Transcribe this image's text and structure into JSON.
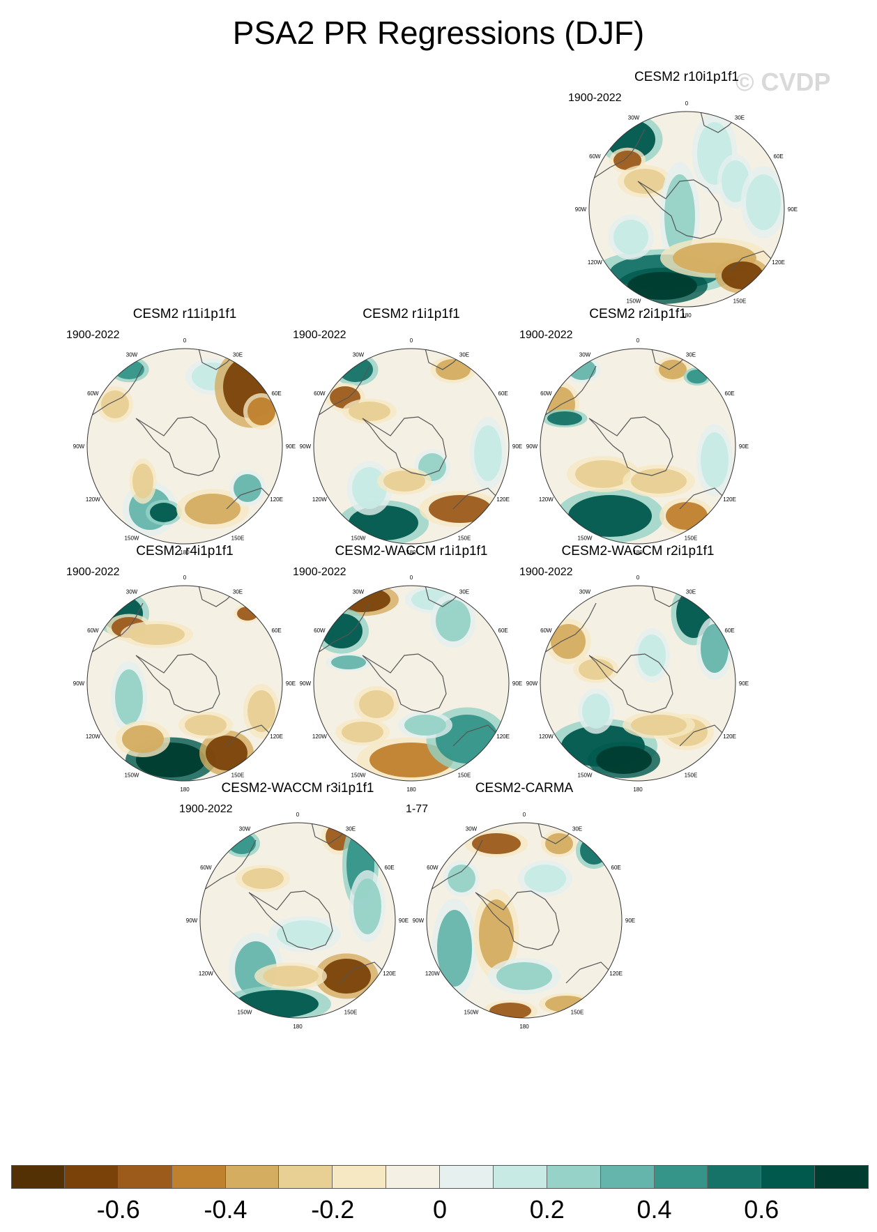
{
  "figure": {
    "title": "PSA2 PR Regressions (DJF)",
    "watermark": "© CVDP"
  },
  "panels": [
    {
      "label": "CESM2 r10i1p1f1",
      "period": "1900-2022"
    },
    {
      "label": "CESM2 r11i1p1f1",
      "period": "1900-2022"
    },
    {
      "label": "CESM2 r1i1p1f1",
      "period": "1900-2022"
    },
    {
      "label": "CESM2 r2i1p1f1",
      "period": "1900-2022"
    },
    {
      "label": "CESM2 r4i1p1f1",
      "period": "1900-2022"
    },
    {
      "label": "CESM2-WACCM r1i1p1f1",
      "period": "1900-2022"
    },
    {
      "label": "CESM2-WACCM r2i1p1f1",
      "period": "1900-2022"
    },
    {
      "label": "CESM2-WACCM r3i1p1f1",
      "period": "1900-2022"
    },
    {
      "label": "CESM2-CARMA",
      "period": "1-77"
    }
  ],
  "map": {
    "projection": "south polar stereographic",
    "longitude_labels": [
      "0",
      "30E",
      "60E",
      "90E",
      "120E",
      "150E",
      "180",
      "150W",
      "120W",
      "90W",
      "60W",
      "30W"
    ]
  },
  "colorbar": {
    "colors": [
      "#543005",
      "#7a4209",
      "#9c5b1b",
      "#bf812d",
      "#d4ad60",
      "#e8cf94",
      "#f6e8c3",
      "#f5f0e4",
      "#e5f0ef",
      "#c7eae5",
      "#96d2c7",
      "#66b5ac",
      "#359589",
      "#167367",
      "#01594d",
      "#003c30"
    ],
    "tick_labels": [
      "-0.6",
      "-0.4",
      "-0.2",
      "0",
      "0.2",
      "0.4",
      "0.6"
    ]
  }
}
